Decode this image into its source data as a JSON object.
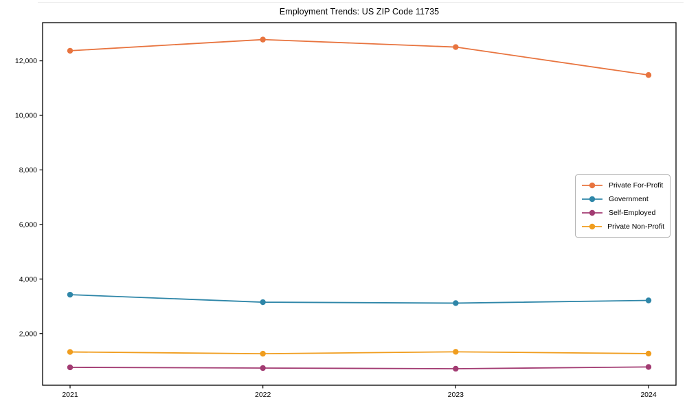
{
  "chart_data": {
    "type": "line",
    "title": "Employment Trends: US ZIP Code 11735",
    "categories": [
      "2021",
      "2022",
      "2023",
      "2024"
    ],
    "series": [
      {
        "name": "Private For-Profit",
        "color": "#E8743F",
        "values": [
          12370,
          12780,
          12505,
          11480
        ]
      },
      {
        "name": "Government",
        "color": "#2E86A8",
        "values": [
          3425,
          3150,
          3115,
          3215
        ]
      },
      {
        "name": "Self-Employed",
        "color": "#A23B72",
        "values": [
          760,
          735,
          710,
          775
        ]
      },
      {
        "name": "Private Non-Profit",
        "color": "#F09D1E",
        "values": [
          1325,
          1260,
          1330,
          1265
        ]
      }
    ],
    "xlabel": "",
    "ylabel": "",
    "ylim": [
      105,
      13400
    ],
    "yticks": [
      2000,
      4000,
      6000,
      8000,
      10000,
      12000
    ],
    "ytick_labels": [
      "2,000",
      "4,000",
      "6,000",
      "8,000",
      "10,000",
      "12,000"
    ],
    "grid": false,
    "legend": {
      "position": "center-right",
      "border": true
    },
    "marker": "circle",
    "axis_color": "#000000"
  }
}
